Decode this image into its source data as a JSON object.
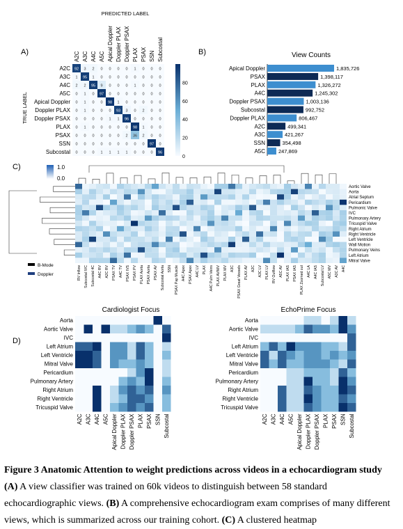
{
  "panel_labels": {
    "a": "A)",
    "b": "B)",
    "c": "C)",
    "d": "D)"
  },
  "confusion": {
    "title": "PREDICTED LABEL",
    "ylabel": "TRUE LABEL",
    "labels": [
      "A2C",
      "A3C",
      "A4C",
      "A5C",
      "Apical Doppler",
      "Doppler PLAX",
      "Doppler PSAX",
      "PLAX",
      "PSAX",
      "SSN",
      "Subcostal"
    ],
    "matrix": [
      [
        92,
        3,
        2,
        0,
        0,
        0,
        0,
        1,
        0,
        0,
        0
      ],
      [
        1,
        95,
        1,
        0,
        0,
        0,
        0,
        0,
        0,
        0,
        0
      ],
      [
        2,
        2,
        95,
        9,
        0,
        0,
        0,
        1,
        0,
        0,
        0
      ],
      [
        0,
        1,
        0,
        97,
        0,
        0,
        0,
        0,
        0,
        0,
        0
      ],
      [
        0,
        1,
        0,
        0,
        98,
        1,
        0,
        0,
        0,
        0,
        0
      ],
      [
        0,
        1,
        0,
        0,
        0,
        93,
        3,
        0,
        2,
        0,
        0
      ],
      [
        0,
        0,
        0,
        0,
        1,
        1,
        96,
        0,
        0,
        0,
        0
      ],
      [
        0,
        1,
        0,
        0,
        0,
        0,
        0,
        98,
        1,
        0,
        0
      ],
      [
        0,
        0,
        0,
        0,
        0,
        0,
        2,
        36,
        2,
        0,
        0
      ],
      [
        0,
        0,
        0,
        0,
        0,
        0,
        0,
        0,
        0,
        97,
        0
      ],
      [
        0,
        0,
        0,
        1,
        1,
        1,
        1,
        0,
        0,
        0,
        96
      ]
    ],
    "colorbar_ticks": [
      "80",
      "60",
      "40",
      "20",
      "0"
    ]
  },
  "chart_data": [
    {
      "type": "bar",
      "title": "View Counts",
      "categories": [
        "Apical Doppler",
        "PSAX",
        "PLAX",
        "A4C",
        "Doppler PSAX",
        "Subcostal",
        "Doppler PLAX",
        "A2C",
        "A3C",
        "SSN",
        "A5C"
      ],
      "values": [
        1835726,
        1398117,
        1326272,
        1245302,
        1003136,
        992752,
        806467,
        499341,
        421267,
        354498,
        247869
      ],
      "value_labels": [
        "1,835,726",
        "1,398,117",
        "1,326,272",
        "1,245,302",
        "1,003,136",
        "992,752",
        "806,467",
        "499,341",
        "421,267",
        "354,498",
        "247,869"
      ]
    }
  ],
  "cluster": {
    "colorbar_top": "1.0",
    "colorbar_bottom": "0.0",
    "legend": [
      {
        "label": "B-Mode",
        "color": "#000000"
      },
      {
        "label": "Doppler",
        "color": "#1f3f7f"
      }
    ],
    "rows": [
      "Aortic Valve",
      "Aorta",
      "Atrial Septum",
      "Pericardium",
      "Pulmonic Valve",
      "IVC",
      "Pulmonary Artery",
      "Tricuspid Valve",
      "Right Atrium",
      "Right Ventricle",
      "Left Ventricle",
      "Wall Motion",
      "Pulmonary Veins",
      "Left Atrium",
      "Mitral Valve"
    ],
    "cols": [
      "RV Inflow",
      "Subcostal IVC",
      "Subcostal 4C",
      "A4C RV",
      "A2C RV",
      "PSAX TV",
      "A4C TV",
      "PSAX IVS",
      "PSAX PV",
      "PLAX Aorta",
      "PSAX Aorta",
      "PSAX AV",
      "Subcostal Aorta",
      "SSN",
      "PSAX Pap Muscle",
      "A4C Apex",
      "PSAX Apex",
      "A4C LV",
      "PLAX",
      "A4C Pulm Veins",
      "PLAX AV/MV",
      "PLAX MV",
      "A3C",
      "PSAX Great Vessels",
      "PLAX AV",
      "A2C",
      "A3C LV",
      "PLAX LV",
      "RV Outflow",
      "A5C AV",
      "PLAX IAS",
      "PSAX IAS",
      "PLAX Zoomed out",
      "A4C LA",
      "A4C IAS",
      "Subcostal LV",
      "A5C MV",
      "A3C AV",
      "A4C"
    ]
  },
  "focus_rows": [
    "Aorta",
    "Aortic Valve",
    "IVC",
    "Left Atrium",
    "Left Ventricle",
    "Mitral Valve",
    "Pericardium",
    "Pulmonary Artery",
    "Right Atrium",
    "Right Ventricle",
    "Tricuspid Valve"
  ],
  "focus_cols": [
    "A2C",
    "A3C",
    "A4C",
    "A5C",
    "Apical Doppler",
    "Doppler PLAX",
    "Doppler PSAX",
    "PLAX",
    "PSAX",
    "SSN",
    "Subcostal"
  ],
  "cardiologist": {
    "title": "Cardiologist Focus",
    "grid": [
      [
        0,
        0,
        0,
        0,
        0,
        0,
        0,
        0,
        0,
        5,
        0
      ],
      [
        0,
        5,
        0,
        5,
        1,
        1,
        2,
        3,
        2,
        0,
        4
      ],
      [
        0,
        0,
        0,
        0,
        0,
        0,
        0,
        0,
        0,
        0,
        5
      ],
      [
        4,
        4,
        5,
        0,
        3,
        3,
        1,
        4,
        2,
        0,
        1
      ],
      [
        5,
        5,
        4,
        0,
        3,
        3,
        1,
        4,
        2,
        0,
        2
      ],
      [
        5,
        5,
        4,
        0,
        3,
        2,
        2,
        3,
        2,
        0,
        1
      ],
      [
        0,
        0,
        0,
        0,
        0,
        0,
        1,
        3,
        5,
        0,
        1
      ],
      [
        0,
        0,
        0,
        0,
        0,
        2,
        3,
        2,
        5,
        0,
        2
      ],
      [
        0,
        0,
        5,
        0,
        1,
        3,
        4,
        3,
        4,
        0,
        3
      ],
      [
        0,
        0,
        5,
        0,
        1,
        2,
        4,
        4,
        3,
        0,
        2
      ],
      [
        0,
        0,
        5,
        0,
        2,
        3,
        4,
        3,
        4,
        0,
        2
      ]
    ]
  },
  "echoprime": {
    "title": "EchoPrime Focus",
    "grid": [
      [
        0,
        0,
        0,
        0,
        0,
        1,
        1,
        0,
        1,
        5,
        1
      ],
      [
        1,
        1,
        1,
        1,
        2,
        4,
        3,
        3,
        2,
        5,
        3
      ],
      [
        0,
        0,
        0,
        0,
        0,
        0,
        0,
        0,
        0,
        0,
        4
      ],
      [
        2,
        4,
        2,
        5,
        3,
        3,
        3,
        2,
        2,
        1,
        4
      ],
      [
        4,
        1,
        4,
        3,
        2,
        3,
        3,
        2,
        3,
        2,
        3
      ],
      [
        4,
        2,
        4,
        2,
        2,
        3,
        3,
        3,
        2,
        1,
        4
      ],
      [
        0,
        0,
        0,
        1,
        1,
        2,
        2,
        2,
        1,
        4,
        2
      ],
      [
        0,
        0,
        0,
        1,
        1,
        5,
        2,
        2,
        1,
        5,
        3
      ],
      [
        0,
        0,
        4,
        1,
        1,
        4,
        3,
        2,
        2,
        5,
        4
      ],
      [
        0,
        0,
        4,
        1,
        1,
        5,
        3,
        2,
        2,
        4,
        3
      ],
      [
        0,
        0,
        4,
        1,
        1,
        4,
        3,
        2,
        2,
        5,
        4
      ]
    ]
  },
  "caption": {
    "title": "Figure 3 Anatomic Attention to weight predictions across videos in a echocardiogram study",
    "a_tag": "(A)",
    "a_text": " A view classifier was trained on 60k videos to distinguish between 58 standard echocardiographic views. ",
    "b_tag": "(B)",
    "b_text": " A comprehensive echocardiogram exam comprises of many different views, which is summarized across our training cohort. ",
    "c_tag": "(C)",
    "c_text": " A clustered heatmap"
  }
}
